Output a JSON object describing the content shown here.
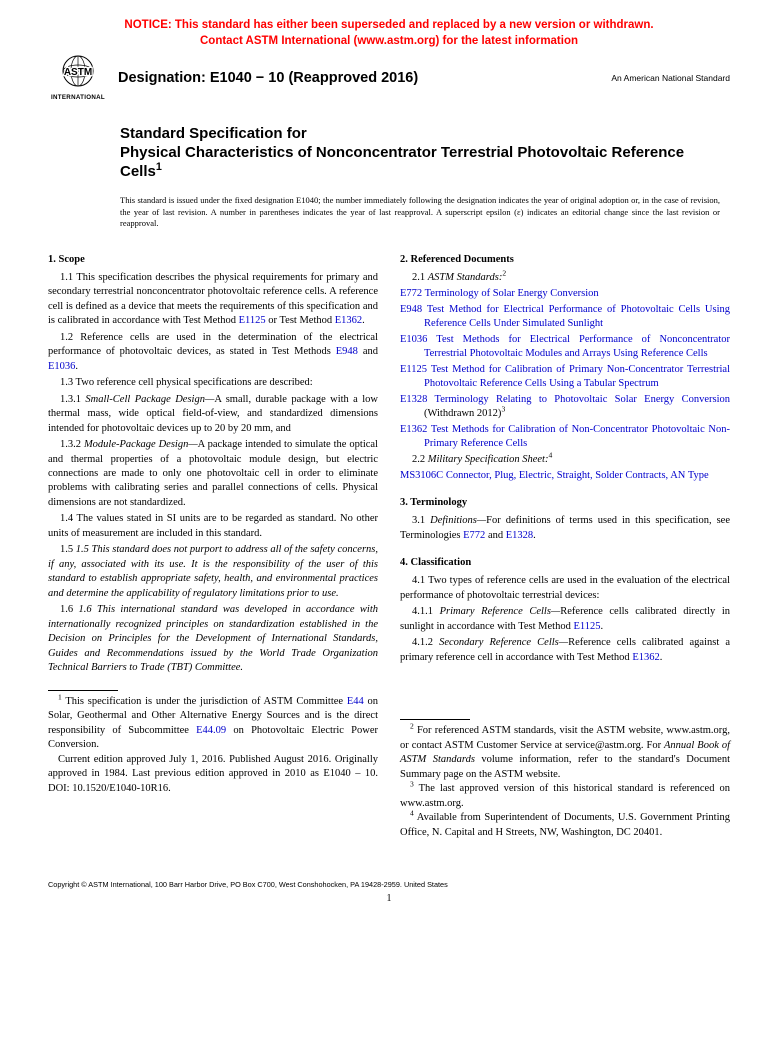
{
  "notice": {
    "line1": "NOTICE: This standard has either been superseded and replaced by a new version or withdrawn.",
    "line2": "Contact ASTM International (www.astm.org) for the latest information"
  },
  "header": {
    "logo_text_top": "ASTM",
    "logo_text_bottom": "INTERNATIONAL",
    "designation": "Designation: E1040 − 10 (Reapproved 2016)",
    "ans": "An American National Standard"
  },
  "title_block": {
    "kicker": "Standard Specification for",
    "title": "Physical Characteristics of Nonconcentrator Terrestrial Photovoltaic Reference Cells",
    "sup": "1"
  },
  "issued": "This standard is issued under the fixed designation E1040; the number immediately following the designation indicates the year of original adoption or, in the case of revision, the year of last revision. A number in parentheses indicates the year of last reapproval. A superscript epsilon (ε) indicates an editorial change since the last revision or reapproval.",
  "left": {
    "sec1_head": "1.  Scope",
    "p11a": "1.1 This specification describes the physical requirements for primary and secondary terrestrial nonconcentrator photovoltaic reference cells. A reference cell is defined as a device that meets the requirements of this specification and is calibrated in accordance with Test Method ",
    "p11_l1": "E1125",
    "p11b": " or Test Method ",
    "p11_l2": "E1362",
    "p11c": ".",
    "p12a": "1.2 Reference cells are used in the determination of the electrical performance of photovoltaic devices, as stated in Test Methods ",
    "p12_l1": "E948",
    "p12b": " and ",
    "p12_l2": "E1036",
    "p12c": ".",
    "p13": "1.3  Two reference cell physical specifications are described:",
    "p131_label": "1.3.1 ",
    "p131_ital": "Small-Cell Package Design—",
    "p131_body": "A small, durable package with a low thermal mass, wide optical field-of-view, and standardized dimensions intended for photovoltaic devices up to 20 by 20 mm, and",
    "p132_label": "1.3.2 ",
    "p132_ital": "Module-Package Design—",
    "p132_body": "A package intended to simulate the optical and thermal properties of a photovoltaic module design, but electric connections are made to only one photovoltaic cell in order to eliminate problems with calibrating series and parallel connections of cells. Physical dimensions are not standardized.",
    "p14": "1.4 The values stated in SI units are to be regarded as standard. No other units of measurement are included in this standard.",
    "p15": "1.5 This standard does not purport to address all of the safety concerns, if any, associated with its use. It is the responsibility of the user of this standard to establish appropriate safety, health, and environmental practices and determine the applicability of regulatory limitations prior to use.",
    "p16": "1.6 This international standard was developed in accordance with internationally recognized principles on standardization established in the Decision on Principles for the Development of International Standards, Guides and Recommendations issued by the World Trade Organization Technical Barriers to Trade (TBT) Committee.",
    "fn1a": " This specification is under the jurisdiction of ASTM Committee ",
    "fn1_l1": "E44",
    "fn1b": " on Solar, Geothermal and Other Alternative Energy Sources and is the direct responsibility of Subcommittee ",
    "fn1_l2": "E44.09",
    "fn1c": " on Photovoltaic Electric Power Conversion.",
    "fn1_p2": "Current edition approved July 1, 2016. Published August 2016. Originally approved in 1984. Last previous edition approved in 2010 as E1040 – 10. DOI: 10.1520/E1040-10R16."
  },
  "right": {
    "sec2_head": "2.  Referenced Documents",
    "p21_label": "2.1 ",
    "p21_ital": "ASTM Standards:",
    "p21_sup": "2",
    "refs": [
      {
        "code": "E772",
        "desc": "Terminology of Solar Energy Conversion",
        "tail": ""
      },
      {
        "code": "E948",
        "desc": "Test Method for Electrical Performance of Photovoltaic Cells Using Reference Cells Under Simulated Sunlight",
        "tail": ""
      },
      {
        "code": "E1036",
        "desc": "Test Methods for Electrical Performance of Nonconcentrator Terrestrial Photovoltaic Modules and Arrays Using Reference Cells",
        "tail": ""
      },
      {
        "code": "E1125",
        "desc": "Test Method for Calibration of Primary Non-Concentrator Terrestrial Photovoltaic Reference Cells Using a Tabular Spectrum",
        "tail": ""
      },
      {
        "code": "E1328",
        "desc": "Terminology Relating to Photovoltaic Solar Energy Conversion",
        "tail": " (Withdrawn 2012)",
        "sup": "3"
      },
      {
        "code": "E1362",
        "desc": "Test Methods for Calibration of Non-Concentrator Photovoltaic Non-Primary Reference Cells",
        "tail": ""
      }
    ],
    "p22_label": "2.2 ",
    "p22_ital": "Military Specification Sheet:",
    "p22_sup": "4",
    "ms_code": "MS3106C",
    "ms_desc": "Connector, Plug, Electric, Straight, Solder Contracts, AN Type",
    "sec3_head": "3.  Terminology",
    "p31_label": "3.1 ",
    "p31_ital": "Definitions—",
    "p31a": "For definitions of terms used in this specification, see Terminologies ",
    "p31_l1": "E772",
    "p31b": " and ",
    "p31_l2": "E1328",
    "p31c": ".",
    "sec4_head": "4.  Classification",
    "p41": "4.1  Two types of reference cells are used in the evaluation of the electrical performance of photovoltaic terrestrial devices:",
    "p411_label": "4.1.1 ",
    "p411_ital": "Primary Reference Cells—",
    "p411a": "Reference cells calibrated directly in sunlight in accordance with Test Method ",
    "p411_l1": "E1125",
    "p411b": ".",
    "p412_label": "4.1.2 ",
    "p412_ital": "Secondary Reference Cells—",
    "p412a": "Reference cells calibrated against a primary reference cell in accordance with Test Method ",
    "p412_l1": "E1362",
    "p412b": ".",
    "fn2a": " For referenced ASTM standards, visit the ASTM website, www.astm.org, or contact ASTM Customer Service at service@astm.org. For ",
    "fn2_ital": "Annual Book of ASTM Standards",
    "fn2b": " volume information, refer to the standard's Document Summary page on the ASTM website.",
    "fn3": " The last approved version of this historical standard is referenced on www.astm.org.",
    "fn4": " Available from Superintendent of Documents, U.S. Government Printing Office, N. Capital and H Streets, NW, Washington, DC 20401."
  },
  "copyright": "Copyright © ASTM International, 100 Barr Harbor Drive, PO Box C700, West Conshohocken, PA 19428-2959. United States",
  "pagenum": "1"
}
